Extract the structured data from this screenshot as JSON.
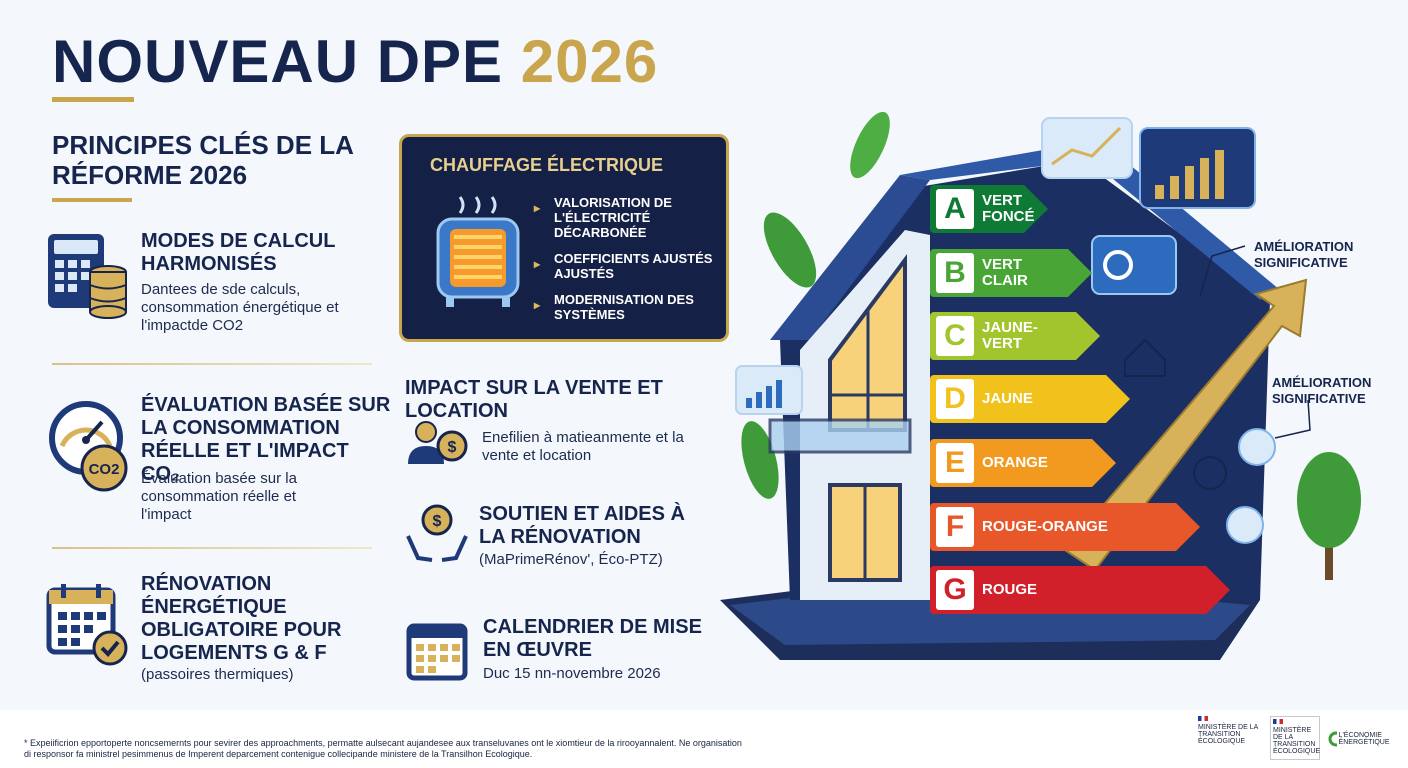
{
  "header": {
    "title_main": "NOUVEAU DPE",
    "title_year": "2026",
    "subtitle": "PRINCIPES CLÉS DE LA RÉFORME 2026"
  },
  "left_sections": [
    {
      "title": "MODES DE CALCUL HARMONISÉS",
      "text": "Dantees de sde calculs, consommation énergétique et l'impactde CO2"
    },
    {
      "title": "ÉVALUATION BASÉE SUR LA CONSOMMATION RÉELLE ET L'IMPACT CO₂",
      "text": "Évaluation basée sur la consommation réelle et l'impact"
    },
    {
      "title": "RÉNOVATION ÉNERGÉTIQUE OBLIGATOIRE POUR LOGEMENTS G & F",
      "text": "(passoires thermiques)"
    }
  ],
  "card": {
    "title": "CHAUFFAGE ÉLECTRIQUE",
    "items": [
      "VALORISATION DE L'ÉLECTRICITÉ DÉCARBONÉE",
      "COEFFICIENTS AJUSTÉS AJUSTÉS",
      "MODERNISATION DES SYSTÈMES"
    ]
  },
  "mid_sections": [
    {
      "title": "IMPACT SUR LA VENTE ET LOCATION",
      "text": "Enefilien à matieanmente et la vente et location"
    },
    {
      "title": "SOUTIEN ET AIDES À LA RÉNOVATION",
      "text": "(MaPrimeRénov', Éco-PTZ)"
    },
    {
      "title": "CALENDRIER DE MISE EN ŒUVRE",
      "text": "Duc 15 nn-novembre 2026"
    }
  ],
  "energy_scale": [
    {
      "letter": "A",
      "label": "VERT FONCÉ",
      "color": "#0f7a36"
    },
    {
      "letter": "B",
      "label": "VERT CLAIR",
      "color": "#49a535"
    },
    {
      "letter": "C",
      "label": "JAUNE-VERT",
      "color": "#a2c42c"
    },
    {
      "letter": "D",
      "label": "JAUNE",
      "color": "#f1c21b"
    },
    {
      "letter": "E",
      "label": "ORANGE",
      "color": "#f29a1f"
    },
    {
      "letter": "F",
      "label": "ROUGE-ORANGE",
      "color": "#e8572a"
    },
    {
      "letter": "G",
      "label": "ROUGE",
      "color": "#d2202a"
    }
  ],
  "notes": [
    "AMÉLIORATION SIGNIFICATIVE",
    "AMÉLIORATION SIGNIFICATIVE"
  ],
  "icons": [
    "calculator-icon",
    "database-icon",
    "gauge-icon",
    "co2-icon",
    "calendar-check-icon",
    "person-money-icon",
    "hands-coin-icon",
    "calendar-icon",
    "heater-icon",
    "house-icon",
    "arrow-up-icon",
    "chart-icon",
    "leaf-icon",
    "tree-icon"
  ],
  "colors": {
    "navy": "#16254d",
    "gold": "#c9a54d"
  },
  "footer": {
    "text": "* Expeiificrion epportoperte noncsemernts pour sevirer des approachments, permatte aulsecant aujandesee aux transeluvanes ont le xiomtieur de la rirooyannalent. Ne organisation di responsor fa ministrel pesimmenus de Imperent deparcement contenigue collecipande ministere de la Transilhon Ecologique.",
    "logo1": "MINISTÈRE DE LA TRANSITION ÉCOLOGIQUE",
    "logo2": "MINISTÈRE DE LA TRANSITION ÉCOLOGIQUE",
    "logo3": "L'ÉCONOMIE ÉNERGÉTIQUE"
  }
}
